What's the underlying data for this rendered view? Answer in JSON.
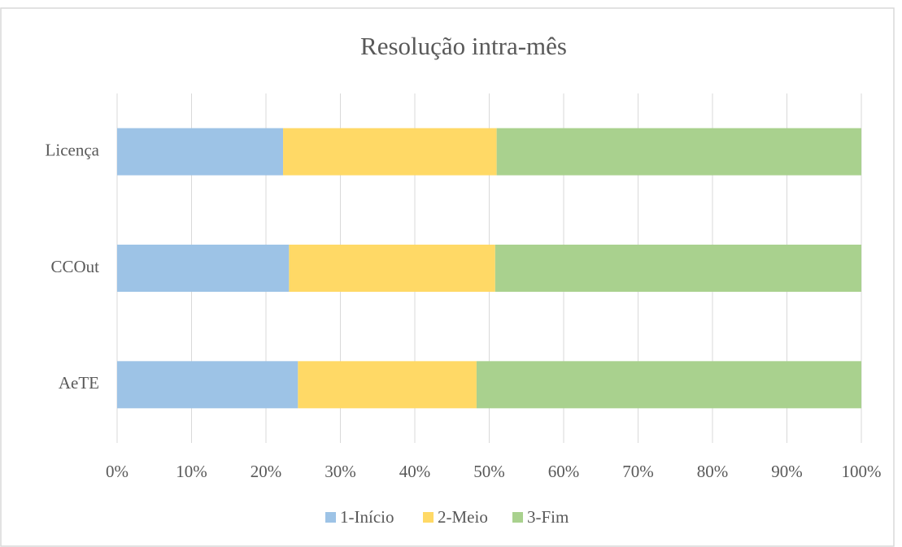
{
  "chart_data": {
    "type": "bar",
    "orientation": "horizontal",
    "stacked": true,
    "title": "Resolução intra-mês",
    "categories": [
      "Licença",
      "CCOut",
      "AeTE"
    ],
    "series": [
      {
        "name": "1-Início",
        "color": "#9dc3e6",
        "values": [
          22.3,
          23.1,
          24.3
        ]
      },
      {
        "name": "2-Meio",
        "color": "#ffd966",
        "values": [
          28.7,
          27.7,
          24.0
        ]
      },
      {
        "name": "3-Fim",
        "color": "#a9d18e",
        "values": [
          49.0,
          49.2,
          51.7
        ]
      }
    ],
    "xlim": [
      0,
      100
    ],
    "xticks": [
      {
        "value": 0,
        "label": "0%"
      },
      {
        "value": 10,
        "label": "10%"
      },
      {
        "value": 20,
        "label": "20%"
      },
      {
        "value": 30,
        "label": "30%"
      },
      {
        "value": 40,
        "label": "40%"
      },
      {
        "value": 50,
        "label": "50%"
      },
      {
        "value": 60,
        "label": "60%"
      },
      {
        "value": 70,
        "label": "70%"
      },
      {
        "value": 80,
        "label": "80%"
      },
      {
        "value": 90,
        "label": "90%"
      },
      {
        "value": 100,
        "label": "100%"
      }
    ],
    "grid": true,
    "legend": "bottom"
  }
}
